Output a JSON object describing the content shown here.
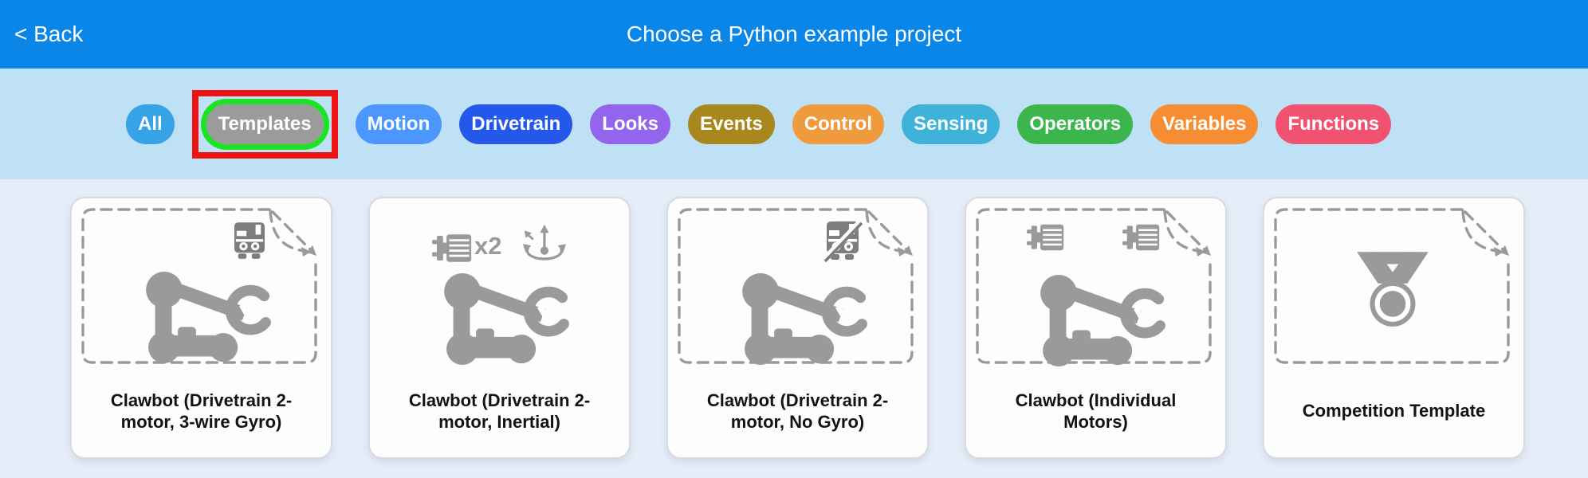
{
  "theme": {
    "header_bg": "#0a86e9",
    "bar_bg": "#bfe1f6",
    "page_bg": "#e5edf8",
    "icon_gray": "#9a9a9a",
    "sensor_gray": "#7d7d7d",
    "card_title_color": "#131313"
  },
  "header": {
    "back_label": "< Back",
    "title": "Choose a Python example project"
  },
  "filters": {
    "buttons": [
      {
        "label": "All",
        "color": "#36a3e6"
      },
      {
        "label": "Templates",
        "color": "#9b9b9b",
        "selected": true,
        "highlight_ring_color": "#20e225",
        "annotation_box_color": "#ee1414"
      },
      {
        "label": "Motion",
        "color": "#4c97ff"
      },
      {
        "label": "Drivetrain",
        "color": "#2458ea"
      },
      {
        "label": "Looks",
        "color": "#9265ec"
      },
      {
        "label": "Events",
        "color": "#a8871d"
      },
      {
        "label": "Control",
        "color": "#f09a3e"
      },
      {
        "label": "Sensing",
        "color": "#3eb2d8"
      },
      {
        "label": "Operators",
        "color": "#3cb64c"
      },
      {
        "label": "Variables",
        "color": "#f78d33"
      },
      {
        "label": "Functions",
        "color": "#f15270"
      }
    ]
  },
  "cards": [
    {
      "title": "Clawbot (Drivetrain 2-motor, 3-wire Gyro)",
      "dashed_frame": true,
      "icons": [
        "gyro-sensor-icon",
        "clawbot-icon"
      ]
    },
    {
      "title": "Clawbot (Drivetrain 2-motor, Inertial)",
      "dashed_frame": false,
      "motor_count_label": "x2",
      "icons": [
        "motor-icon",
        "inertial-sensor-icon",
        "clawbot-icon"
      ]
    },
    {
      "title": "Clawbot (Drivetrain 2-motor, No Gyro)",
      "dashed_frame": true,
      "icons": [
        "no-gyro-icon",
        "clawbot-icon"
      ]
    },
    {
      "title": "Clawbot (Individual Motors)",
      "dashed_frame": true,
      "icons": [
        "motor-icon",
        "motor-icon",
        "clawbot-icon"
      ]
    },
    {
      "title": "Competition Template",
      "dashed_frame": true,
      "icons": [
        "medal-icon"
      ]
    }
  ]
}
